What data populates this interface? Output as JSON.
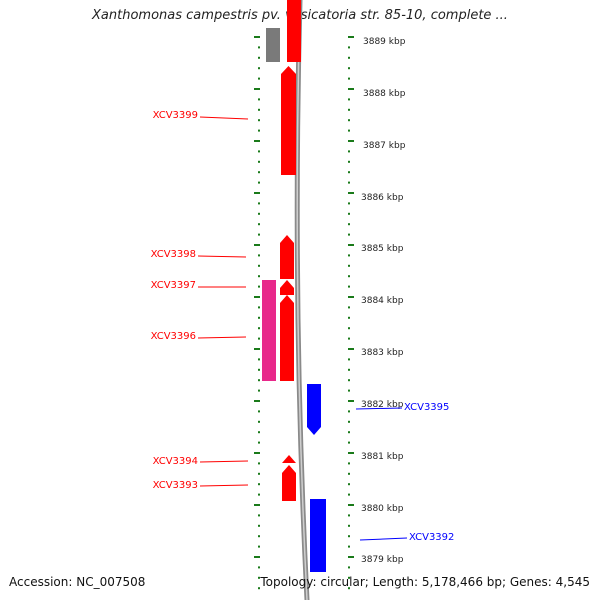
{
  "title": "Xanthomonas campestris pv. vesicatoria str. 85-10, complete ...",
  "accession_text": "Accession: NC_007508",
  "topology_text": "Topology: circular; Length: 5,178,466 bp; Genes: 4,545",
  "colors": {
    "forward_gene": "#ff0000",
    "reverse_gene": "#0000ff",
    "pink_feature": "#e8288a",
    "grey_feature": "#7a7a7a",
    "backbone": "#8a8a8a",
    "tick": "#1a7a1a"
  },
  "kbp_labels": [
    "3889 kbp",
    "3888 kbp",
    "3887 kbp",
    "3886 kbp",
    "3885 kbp",
    "3884 kbp",
    "3883 kbp",
    "3882 kbp",
    "3881 kbp",
    "3880 kbp",
    "3879 kbp"
  ],
  "gene_labels": [
    {
      "text": "XCV3399",
      "strand": "forward"
    },
    {
      "text": "XCV3398",
      "strand": "forward"
    },
    {
      "text": "XCV3397",
      "strand": "forward"
    },
    {
      "text": "XCV3396",
      "strand": "forward"
    },
    {
      "text": "XCV3394",
      "strand": "forward"
    },
    {
      "text": "XCV3393",
      "strand": "forward"
    },
    {
      "text": "XCV3395",
      "strand": "reverse"
    },
    {
      "text": "XCV3392",
      "strand": "reverse"
    }
  ]
}
